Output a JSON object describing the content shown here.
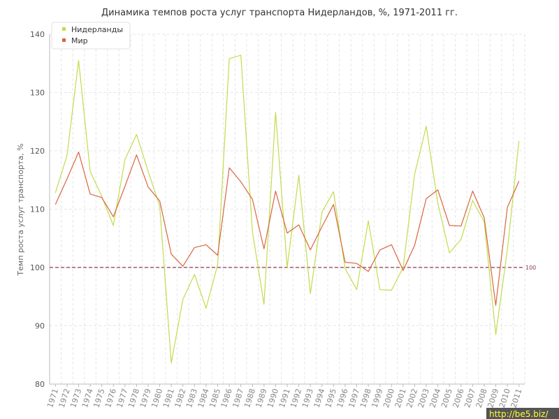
{
  "chart_data": {
    "type": "line",
    "title": "Динамика темпов роста услуг транспорта Нидерландов, %, 1971-2011 гг.",
    "xlabel": "",
    "ylabel": "Темп роста услуг транспорта, %",
    "ylim": [
      80,
      140
    ],
    "yticks": [
      "80",
      "90",
      "100",
      "110",
      "120",
      "130",
      "140"
    ],
    "grid": true,
    "legend": "top-left",
    "x": [
      "1971",
      "1972",
      "1973",
      "1974",
      "1975",
      "1976",
      "1977",
      "1978",
      "1979",
      "1980",
      "1981",
      "1982",
      "1983",
      "1984",
      "1985",
      "1986",
      "1987",
      "1988",
      "1989",
      "1990",
      "1991",
      "1992",
      "1993",
      "1994",
      "1995",
      "1996",
      "1997",
      "1998",
      "1999",
      "2000",
      "2001",
      "2002",
      "2003",
      "2004",
      "2005",
      "2006",
      "2007",
      "2008",
      "2009",
      "2010",
      "2011"
    ],
    "series": [
      {
        "name": "Нидерланды",
        "color": "#c0dc4c",
        "values": [
          112.8,
          119.2,
          135.5,
          116.5,
          112.2,
          107.2,
          118.5,
          122.8,
          116.5,
          110.5,
          83.6,
          94.5,
          98.8,
          93.0,
          100.5,
          135.8,
          136.4,
          106.2,
          93.7,
          126.6,
          100.0,
          115.8,
          95.5,
          109.5,
          113.0,
          99.8,
          96.2,
          108.0,
          96.2,
          96.1,
          100.0,
          116.0,
          124.2,
          111.0,
          102.5,
          104.8,
          111.5,
          107.8,
          88.5,
          103.0,
          121.7
        ]
      },
      {
        "name": "Мир",
        "color": "#d9653f",
        "values": [
          110.8,
          115.2,
          119.8,
          112.6,
          112.0,
          108.7,
          113.9,
          119.3,
          113.8,
          111.4,
          102.3,
          100.2,
          103.4,
          103.9,
          102.1,
          117.1,
          114.7,
          111.7,
          103.2,
          113.1,
          105.9,
          107.3,
          103.0,
          107.0,
          110.8,
          100.9,
          100.7,
          99.3,
          103.0,
          103.9,
          99.5,
          103.8,
          111.8,
          113.3,
          107.2,
          107.1,
          113.1,
          108.5,
          93.5,
          110.3,
          114.8
        ]
      }
    ],
    "reference_line": {
      "value": 100,
      "label": "100",
      "color": "#8b3a4a"
    }
  },
  "watermark": "http://be5.biz/"
}
